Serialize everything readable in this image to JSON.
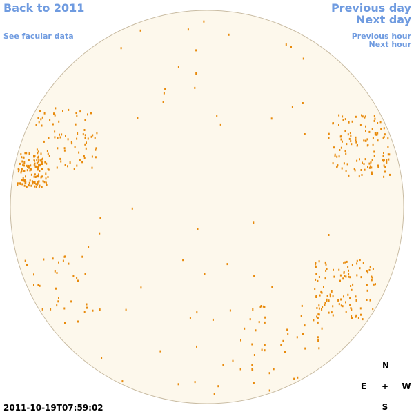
{
  "nav": {
    "back": "Back to 2011",
    "facular": "See facular data",
    "previous_day": "Previous day",
    "next_day": "Next day",
    "previous_hour": "Previous hour",
    "next_hour": "Next hour"
  },
  "timestamp": "2011-10-19T07:59:02",
  "compass": {
    "north": "N",
    "east": "E",
    "center": "+",
    "west": "W",
    "south": "S"
  }
}
